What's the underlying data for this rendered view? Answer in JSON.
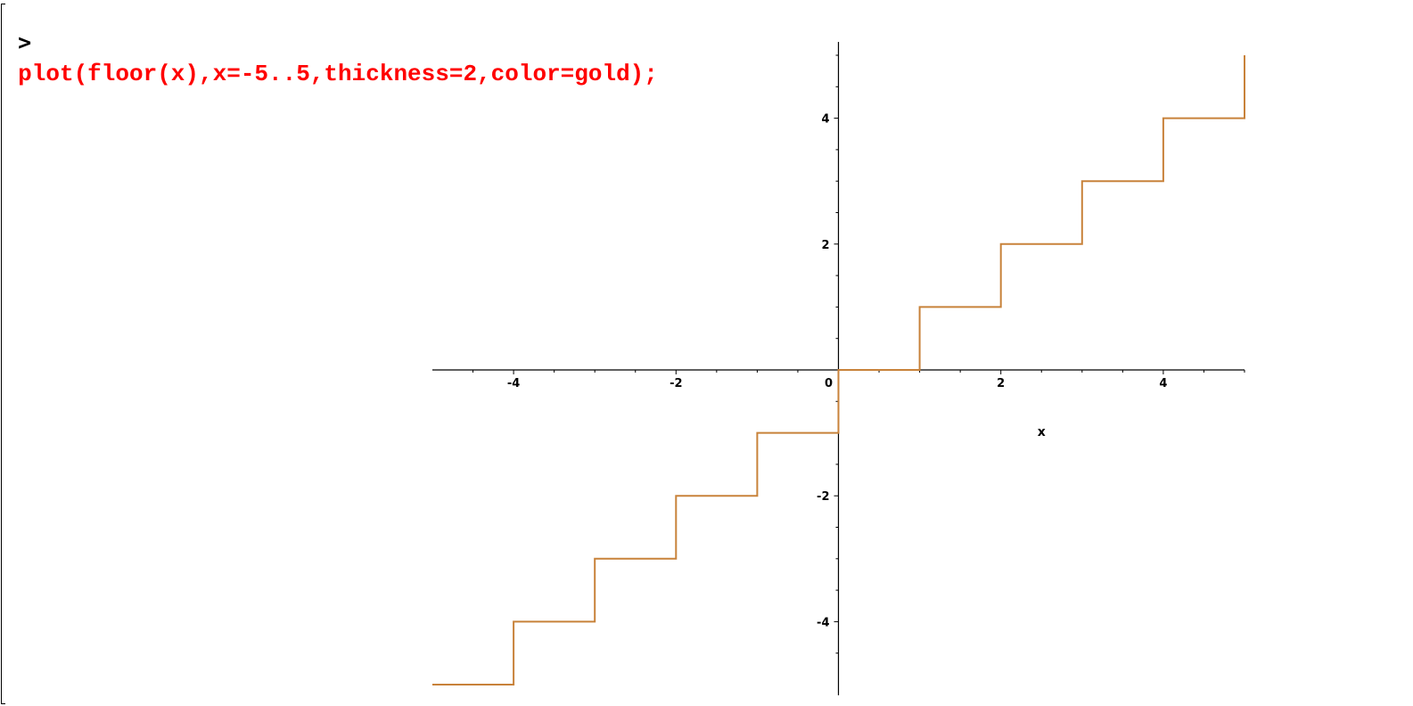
{
  "worksheet": {
    "prompt": ">",
    "command": "plot(floor(x),x=-5..5,thickness=2,color=gold);",
    "command_color": "#ff0000"
  },
  "chart_data": {
    "type": "line",
    "function": "floor(x)",
    "title": "",
    "xlabel": "x",
    "ylabel": "",
    "xlim": [
      -5,
      5
    ],
    "ylim": [
      -5,
      5
    ],
    "x_ticks": [
      -4,
      -2,
      0,
      2,
      4
    ],
    "y_ticks": [
      -4,
      -2,
      2,
      4
    ],
    "x_tick_labels": [
      "-4",
      "-2",
      "0",
      "2",
      "4"
    ],
    "y_tick_labels": [
      "-4",
      "-2",
      "2",
      "4"
    ],
    "grid": false,
    "legend": "none",
    "line_color": "#c8823a",
    "thickness": 2,
    "series": [
      {
        "x": [
          -5,
          -4,
          -4,
          -3,
          -3,
          -2,
          -2,
          -1,
          -1,
          0,
          0,
          1,
          1,
          2,
          2,
          3,
          3,
          4,
          4,
          5,
          5
        ],
        "y": [
          -5,
          -5,
          -4,
          -4,
          -3,
          -3,
          -2,
          -2,
          -1,
          -1,
          0,
          0,
          1,
          1,
          2,
          2,
          3,
          3,
          4,
          4,
          5
        ]
      }
    ]
  }
}
